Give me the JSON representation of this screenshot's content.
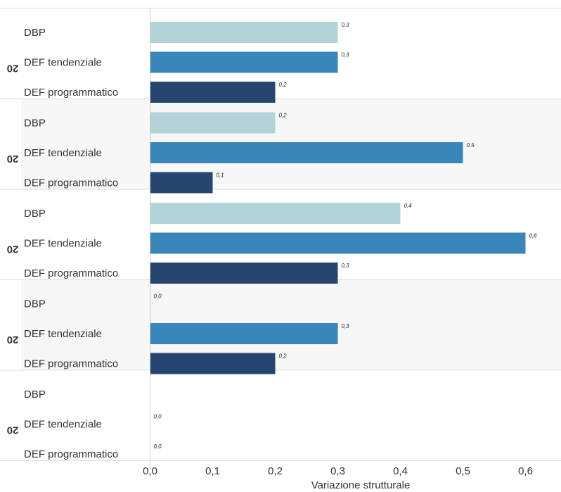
{
  "chart_data": {
    "type": "bar",
    "orientation": "horizontal",
    "xlabel": "Variazione strutturale",
    "xlim": [
      0,
      0.65
    ],
    "x_ticks": [
      "0,0",
      "0,1",
      "0,2",
      "0,3",
      "0,4",
      "0,5",
      "0,6"
    ],
    "categories": [
      "DBP",
      "DEF tendenziale",
      "DEF programmatico"
    ],
    "category_colors": [
      "#b4d3d9",
      "#3a86ba",
      "#26466f"
    ],
    "groups": [
      {
        "label": "20",
        "values": [
          0.3,
          0.3,
          0.2
        ],
        "value_labels": [
          "0,3",
          "0,3",
          "0,2"
        ]
      },
      {
        "label": "20",
        "values": [
          0.2,
          0.5,
          0.1
        ],
        "value_labels": [
          "0,2",
          "0,5",
          "0,1"
        ]
      },
      {
        "label": "20",
        "values": [
          0.4,
          0.6,
          0.3
        ],
        "value_labels": [
          "0,4",
          "0,6",
          "0,3"
        ]
      },
      {
        "label": "20",
        "values": [
          0.0,
          0.3,
          0.2
        ],
        "value_labels": [
          "0,0",
          "0,3",
          "0,2"
        ]
      },
      {
        "label": "20",
        "values": [
          null,
          0.0,
          0.0
        ],
        "value_labels": [
          "",
          "0,0",
          "0,0"
        ]
      }
    ],
    "band_shading": "alternating",
    "grid": false,
    "legend": "none"
  }
}
